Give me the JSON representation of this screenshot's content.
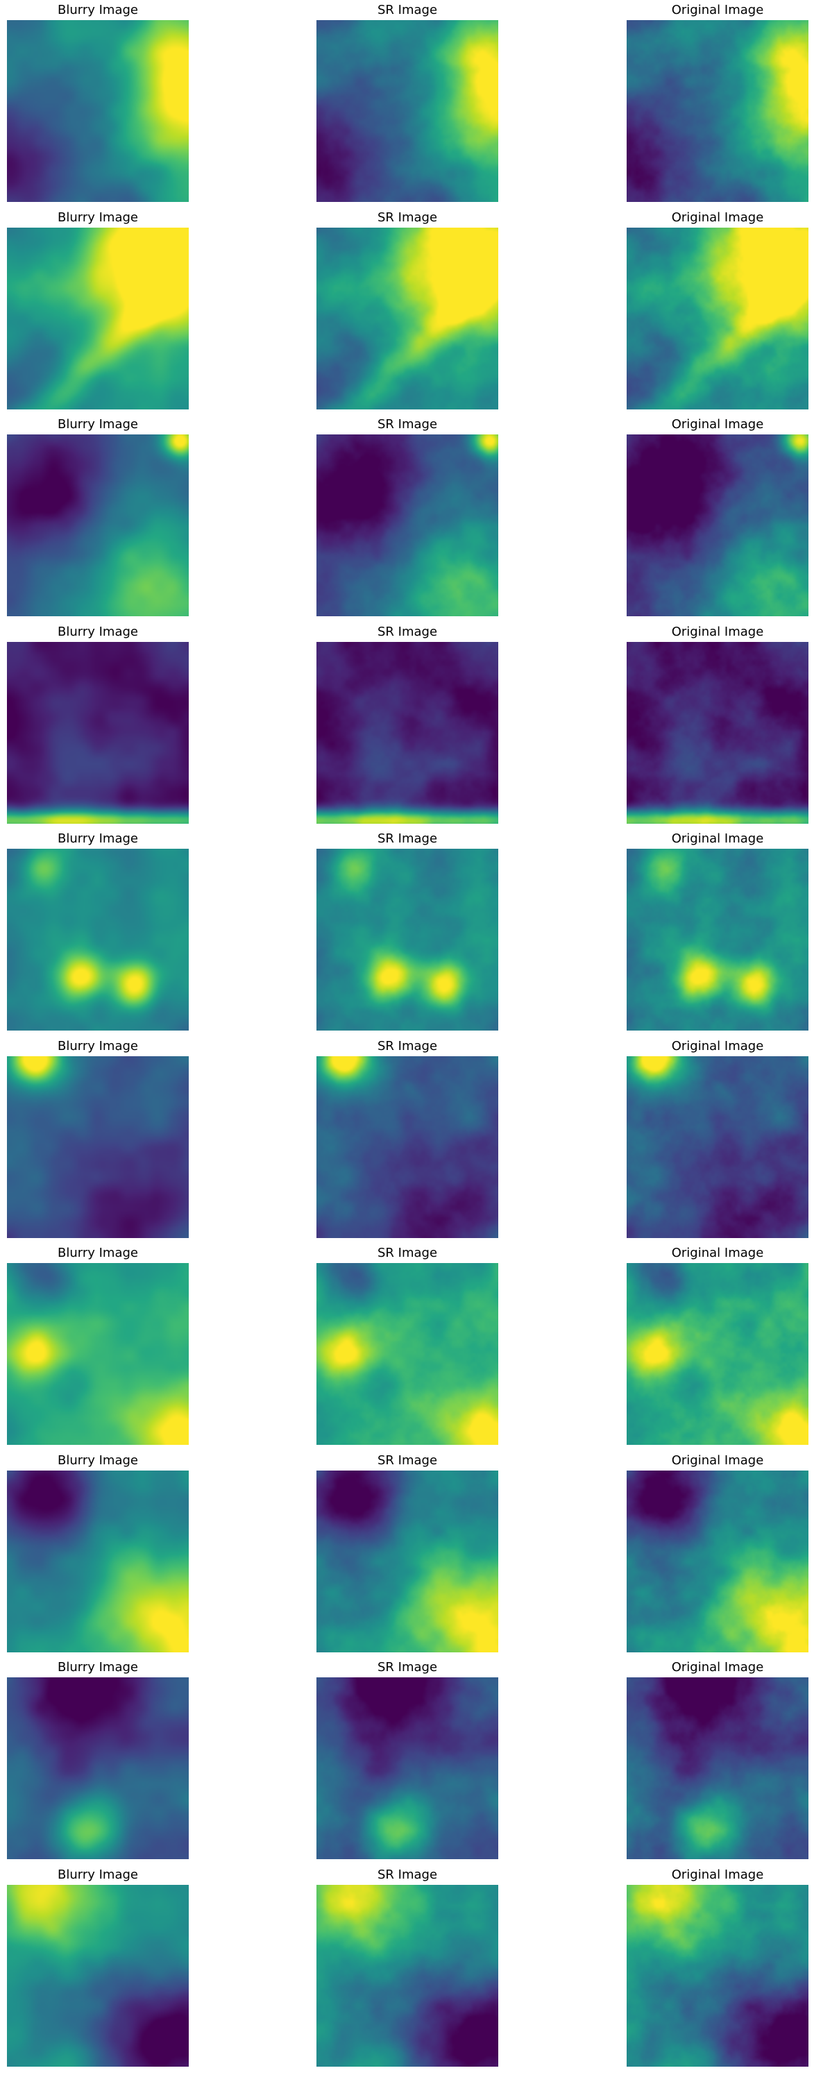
{
  "figure": {
    "columns": [
      "Blurry Image",
      "SR Image",
      "Original Image"
    ],
    "colormap": "viridis",
    "rows": [
      {
        "id": 1,
        "brightness": [
          0.45,
          0.4,
          0.4
        ],
        "features": "bright filament along right edge, dark lower-left"
      },
      {
        "id": 2,
        "brightness": [
          0.55,
          0.5,
          0.5
        ],
        "features": "bright yellow upper-right, diagonal filament"
      },
      {
        "id": 3,
        "brightness": [
          0.35,
          0.3,
          0.25
        ],
        "features": "dark upper-left, bright spot top-right corner"
      },
      {
        "id": 4,
        "brightness": [
          0.25,
          0.25,
          0.25
        ],
        "features": "mostly dark, bright band along bottom edge"
      },
      {
        "id": 5,
        "brightness": [
          0.45,
          0.45,
          0.45
        ],
        "features": "bright clumps lower-middle"
      },
      {
        "id": 6,
        "brightness": [
          0.3,
          0.3,
          0.3
        ],
        "features": "bright spot top-left"
      },
      {
        "id": 7,
        "brightness": [
          0.6,
          0.6,
          0.6
        ],
        "features": "bright greens, yellow lower-right"
      },
      {
        "id": 8,
        "brightness": [
          0.45,
          0.45,
          0.45
        ],
        "features": "dark upper-left, bright lower-right"
      },
      {
        "id": 9,
        "brightness": [
          0.3,
          0.3,
          0.3
        ],
        "features": "dark top, bright clumps at bottom"
      },
      {
        "id": 10,
        "brightness": [
          0.45,
          0.45,
          0.45
        ],
        "features": "bright top-left, dark lower-right"
      }
    ]
  }
}
